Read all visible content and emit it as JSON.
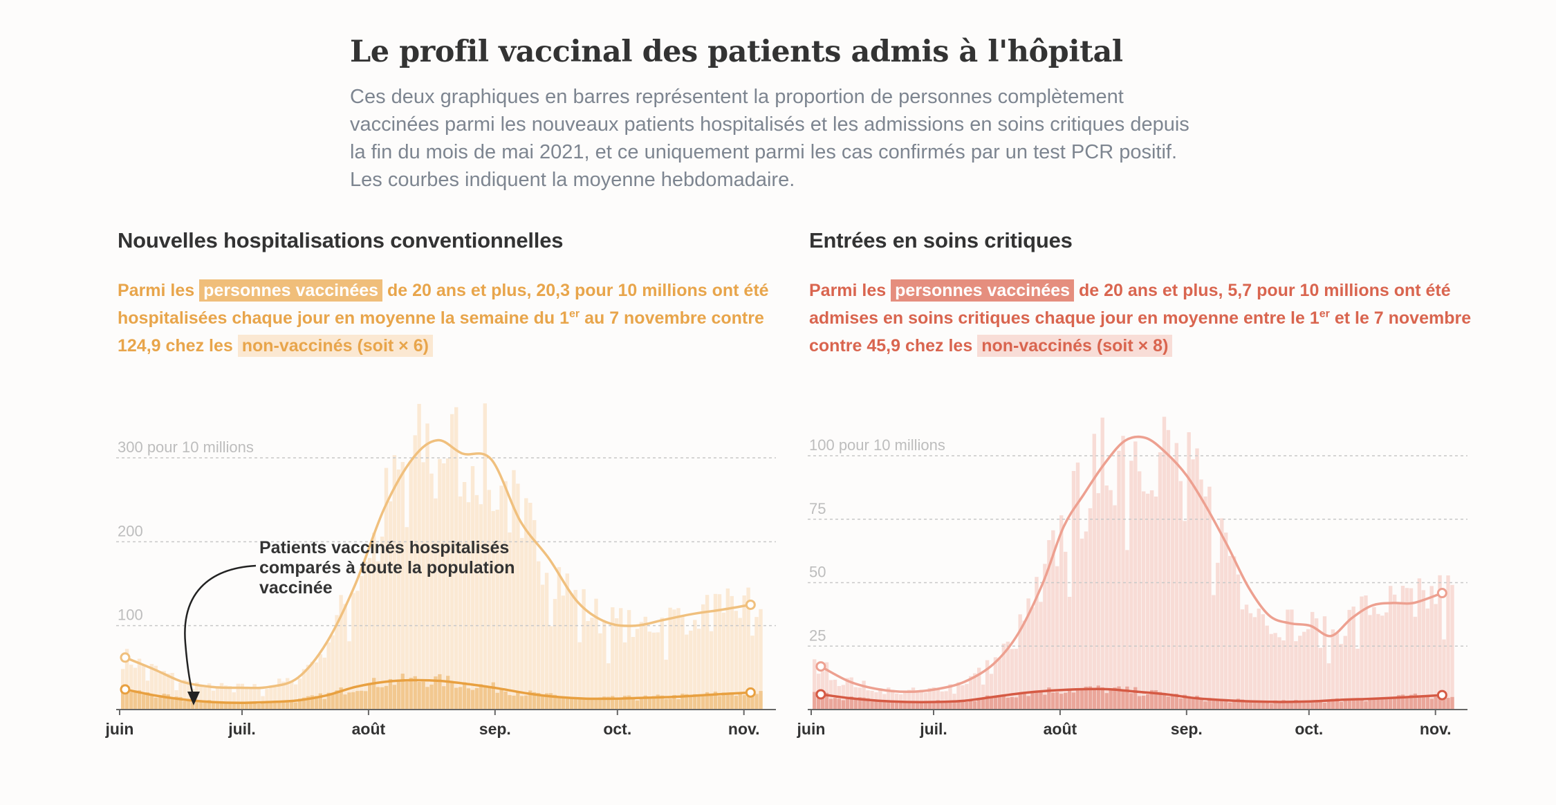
{
  "title": "Le profil vaccinal des patients admis à l'hôpital",
  "subtitle": "Ces deux graphiques en barres représentent la proportion de personnes complètement vaccinées parmi les nouveaux patients hospitalisés et les admissions en soins critiques depuis la fin du mois de mai 2021, et ce uniquement parmi les cas confirmés par un test PCR positif. Les courbes indiquent la moyenne hebdomadaire.",
  "left_panel": {
    "title": "Nouvelles hospitalisations conventionnelles",
    "desc_prefix": "Parmi les ",
    "highlight_vaccinated": "personnes vaccinées",
    "desc_mid1": " de 20 ans et plus, 20,3 pour 10 millions ont été hospitalisées chaque jour en moyenne la semaine du 1",
    "desc_sup": "er",
    "desc_mid2": " au 7 novembre contre 124,9 chez les ",
    "highlight_unvaccinated": "non-vaccinés (soit × 6)",
    "annotation": "Patients vaccinés hospitalisés comparés à toute la population vaccinée"
  },
  "right_panel": {
    "title": "Entrées en soins critiques",
    "desc_prefix": "Parmi les ",
    "highlight_vaccinated": "personnes vaccinées",
    "desc_mid1": " de 20 ans et plus, 5,7 pour 10 millions ont été admises en soins critiques chaque jour en moyenne entre le 1",
    "desc_sup": "er",
    "desc_mid2": " et le 7 novembre contre 45,9 chez les ",
    "highlight_unvaccinated": "non-vaccinés (soit × 8)"
  },
  "colors": {
    "left_line": "#f0c07e",
    "left_bar": "#fbe9d4",
    "left_vac_bar": "#f2c890",
    "left_vac_line": "#e8a040",
    "right_line": "#eda090",
    "right_bar": "#f8dcd6",
    "right_vac_bar": "#eaa69a",
    "right_vac_line": "#d55a44",
    "grid": "#c8c8c8",
    "axis": "#666666",
    "tick_label": "#333333",
    "grid_label": "#bdbdbd"
  },
  "chart_data": [
    {
      "type": "bar",
      "title": "Nouvelles hospitalisations conventionnelles",
      "x_tick_labels": [
        "juin",
        "juil.",
        "août",
        "sep.",
        "oct.",
        "nov."
      ],
      "y_tick_labels": [
        "300 pour 10 millions",
        "200",
        "100"
      ],
      "y_ticks": [
        300,
        200,
        100
      ],
      "ylim": [
        0,
        360
      ],
      "grid": true,
      "x_range_days": [
        0,
        160
      ],
      "series": [
        {
          "name": "non-vaccinés",
          "kind": "bars+weekly-average",
          "weekly_avg_points": [
            [
              1,
              62
            ],
            [
              8,
              48
            ],
            [
              15,
              33
            ],
            [
              22,
              27
            ],
            [
              29,
              26
            ],
            [
              36,
              27
            ],
            [
              43,
              38
            ],
            [
              50,
              80
            ],
            [
              57,
              150
            ],
            [
              64,
              240
            ],
            [
              71,
              300
            ],
            [
              77,
              321
            ],
            [
              83,
              305
            ],
            [
              90,
              298
            ],
            [
              97,
              225
            ],
            [
              104,
              180
            ],
            [
              111,
              128
            ],
            [
              118,
              104
            ],
            [
              125,
              100
            ],
            [
              132,
              107
            ],
            [
              139,
              114
            ],
            [
              146,
              119
            ],
            [
              153,
              124.9
            ]
          ]
        },
        {
          "name": "personnes vaccinées",
          "kind": "bars+weekly-average",
          "weekly_avg_points": [
            [
              1,
              24
            ],
            [
              8,
              17
            ],
            [
              15,
              12
            ],
            [
              22,
              9
            ],
            [
              29,
              8
            ],
            [
              36,
              9
            ],
            [
              43,
              11
            ],
            [
              50,
              17
            ],
            [
              57,
              27
            ],
            [
              64,
              33
            ],
            [
              71,
              35
            ],
            [
              78,
              34
            ],
            [
              85,
              30
            ],
            [
              92,
              25
            ],
            [
              99,
              19
            ],
            [
              106,
              15
            ],
            [
              113,
              13
            ],
            [
              120,
              13
            ],
            [
              127,
              14
            ],
            [
              134,
              15
            ],
            [
              141,
              17
            ],
            [
              148,
              19
            ],
            [
              153,
              20.3
            ]
          ]
        }
      ]
    },
    {
      "type": "bar",
      "title": "Entrées en soins critiques",
      "x_tick_labels": [
        "juin",
        "juil.",
        "août",
        "sep.",
        "oct.",
        "nov."
      ],
      "y_tick_labels": [
        "100 pour 10 millions",
        "75",
        "50",
        "25"
      ],
      "y_ticks": [
        100,
        75,
        50,
        25
      ],
      "ylim": [
        0,
        120
      ],
      "grid": true,
      "x_range_days": [
        0,
        160
      ],
      "series": [
        {
          "name": "non-vaccinés",
          "kind": "bars+weekly-average",
          "weekly_avg_points": [
            [
              2,
              17
            ],
            [
              9,
              11
            ],
            [
              16,
              8
            ],
            [
              23,
              7
            ],
            [
              30,
              8
            ],
            [
              37,
              11
            ],
            [
              44,
              18
            ],
            [
              50,
              30
            ],
            [
              56,
              50
            ],
            [
              61,
              72
            ],
            [
              66,
              85
            ],
            [
              71,
              97
            ],
            [
              76,
              106
            ],
            [
              81,
              107
            ],
            [
              86,
              101
            ],
            [
              91,
              92
            ],
            [
              96,
              79
            ],
            [
              101,
              64
            ],
            [
              106,
              48
            ],
            [
              111,
              37
            ],
            [
              116,
              34
            ],
            [
              121,
              33
            ],
            [
              126,
              29
            ],
            [
              131,
              36
            ],
            [
              136,
              41
            ],
            [
              141,
              42
            ],
            [
              146,
              42
            ],
            [
              153,
              45.9
            ]
          ]
        },
        {
          "name": "personnes vaccinées",
          "kind": "bars+weekly-average",
          "weekly_avg_points": [
            [
              2,
              6
            ],
            [
              9,
              4.5
            ],
            [
              16,
              3.5
            ],
            [
              23,
              3
            ],
            [
              30,
              3
            ],
            [
              37,
              3.5
            ],
            [
              44,
              5
            ],
            [
              51,
              6.5
            ],
            [
              58,
              7.5
            ],
            [
              65,
              8
            ],
            [
              72,
              8
            ],
            [
              79,
              7
            ],
            [
              86,
              6
            ],
            [
              93,
              4.5
            ],
            [
              100,
              3.7
            ],
            [
              107,
              3.2
            ],
            [
              114,
              3
            ],
            [
              121,
              3.2
            ],
            [
              128,
              3.8
            ],
            [
              135,
              4.2
            ],
            [
              142,
              4.7
            ],
            [
              148,
              5.2
            ],
            [
              153,
              5.7
            ]
          ]
        }
      ]
    }
  ]
}
